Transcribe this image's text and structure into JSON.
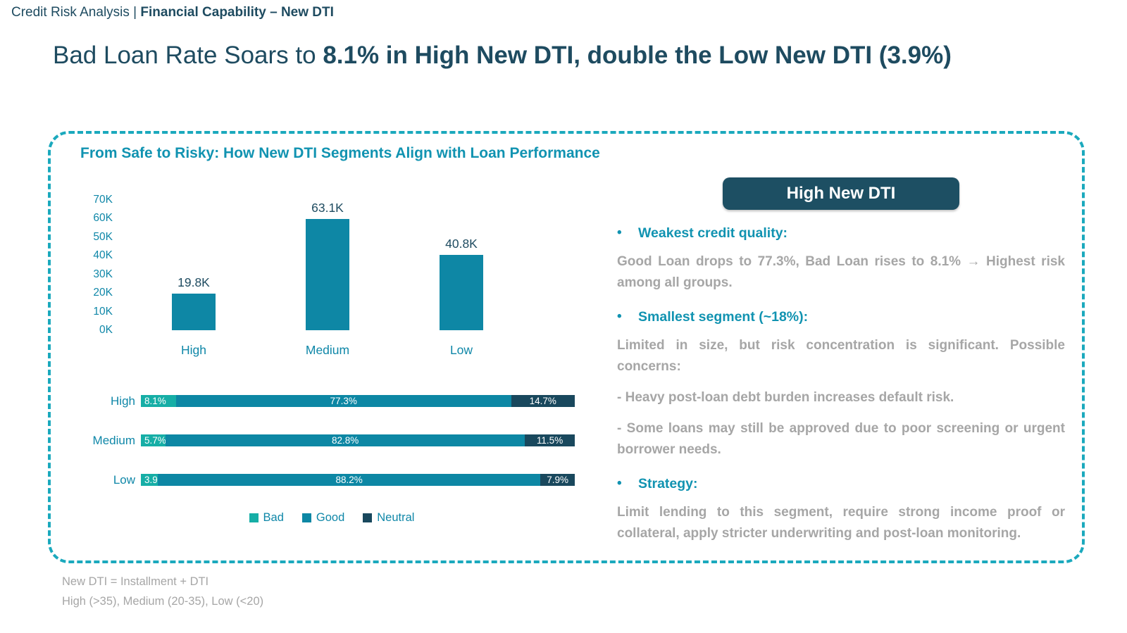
{
  "colors": {
    "dark_navy": "#1E4B60",
    "accent_teal": "#1193B1",
    "axis_teal": "#0F87A8",
    "bar_teal": "#0E87A5",
    "bad": "#16AEA6",
    "good": "#0D87A4",
    "neutral": "#19485D",
    "badge_bg": "#1D4F63",
    "border_teal": "#1BA9BD",
    "gray_text": "#A6A6A6"
  },
  "breadcrumb": {
    "prefix": "Credit Risk Analysis | ",
    "emphasis": "Financial Capability – New DTI"
  },
  "headline": {
    "normal1": "Bad Loan Rate Soars to ",
    "bold1": "8.1% in High New DTI",
    "normal2": ", ",
    "bold2": "double the Low New DTI (3.9%)"
  },
  "chart_section": {
    "title": "From Safe to Risky: How New DTI Segments Align with Loan Performance"
  },
  "chart_data": [
    {
      "type": "bar",
      "categories": [
        "High",
        "Medium",
        "Low"
      ],
      "values": [
        19800,
        63100,
        40800
      ],
      "value_labels": [
        "19.8K",
        "63.1K",
        "40.8K"
      ],
      "yticks": [
        "70K",
        "60K",
        "50K",
        "40K",
        "30K",
        "20K",
        "10K",
        "0K"
      ],
      "ylim": [
        0,
        70000
      ],
      "bar_color": "#0E87A5",
      "grid": false
    },
    {
      "type": "stacked-bar-horizontal",
      "categories": [
        "High",
        "Medium",
        "Low"
      ],
      "series": [
        {
          "name": "Bad",
          "color": "#16AEA6",
          "values": [
            8.1,
            5.7,
            3.9
          ],
          "labels": [
            "8.1%",
            "5.7%",
            "3.9%"
          ]
        },
        {
          "name": "Good",
          "color": "#0D87A4",
          "values": [
            77.3,
            82.8,
            88.2
          ],
          "labels": [
            "77.3%",
            "82.8%",
            "88.2%"
          ]
        },
        {
          "name": "Neutral",
          "color": "#19485D",
          "values": [
            14.7,
            11.5,
            7.9
          ],
          "labels": [
            "14.7%",
            "11.5%",
            "7.9%"
          ]
        }
      ],
      "xlim": [
        0,
        100
      ],
      "legend": [
        "Bad",
        "Good",
        "Neutral"
      ],
      "legend_position": "bottom"
    }
  ],
  "panel": {
    "badge": "High New DTI",
    "bullet_dot": "•",
    "bullets": [
      {
        "heading": "Weakest credit quality:",
        "paragraphs": [
          "Good Loan drops to 77.3%, Bad Loan rises to 8.1% → Highest risk among all groups."
        ]
      },
      {
        "heading": "Smallest segment (~18%):",
        "paragraphs": [
          "Limited in size, but risk concentration is significant. Possible concerns:",
          "- Heavy post-loan debt burden increases default risk.",
          "- Some loans may still be approved due to poor screening or urgent borrower needs."
        ]
      },
      {
        "heading": "Strategy:",
        "paragraphs": [
          "Limit lending to this segment, require strong income proof or collateral, apply stricter underwriting and post-loan monitoring."
        ]
      }
    ]
  },
  "footnotes": {
    "line1": "New DTI = Installment + DTI",
    "line2": "High (>35), Medium (20-35), Low (<20)"
  }
}
